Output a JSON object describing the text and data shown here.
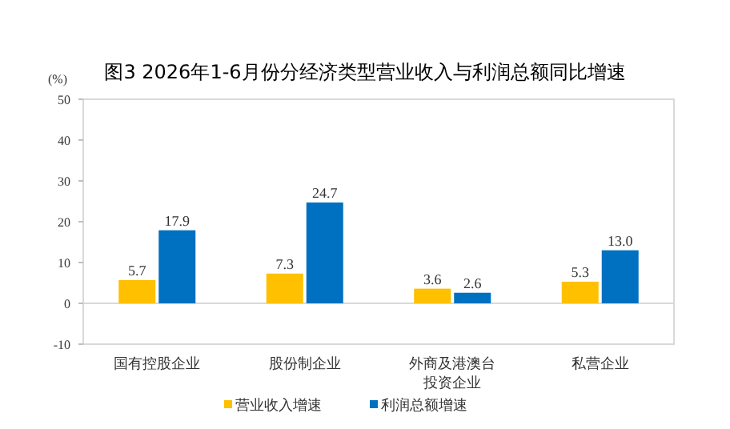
{
  "chart_data": {
    "type": "bar",
    "title": "图3 2026年1-6月份分经济类型营业收入与利润总额同比增速",
    "ylabel": "(%)",
    "categories": [
      "国有控股企业",
      "股份制企业",
      "外商及港澳台投资企业",
      "私营企业"
    ],
    "series": [
      {
        "name": "营业收入增速",
        "color": "#ffc000",
        "values": [
          5.7,
          7.3,
          3.6,
          5.3
        ],
        "value_labels": [
          "5.7",
          "7.3",
          "3.6",
          "5.3"
        ]
      },
      {
        "name": "利润总额增速",
        "color": "#0070c0",
        "values": [
          17.9,
          24.7,
          2.6,
          13.0
        ],
        "value_labels": [
          "17.9",
          "24.7",
          "2.6",
          "13.0"
        ]
      }
    ],
    "ylim": [
      -10,
      50
    ],
    "yticks": [
      -10,
      0,
      10,
      20,
      30,
      40,
      50
    ],
    "legend": "bottom"
  }
}
